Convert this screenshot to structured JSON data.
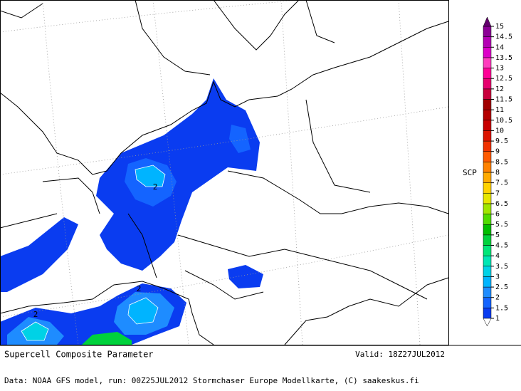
{
  "map": {
    "contour_labels": [
      2,
      2,
      2
    ]
  },
  "colorbar": {
    "label": "SCP",
    "levels": [
      1,
      1.5,
      2,
      2.5,
      3,
      3.5,
      4,
      4.5,
      5,
      5.5,
      6,
      6.5,
      7,
      7.5,
      8,
      8.5,
      9,
      9.5,
      10,
      10.5,
      11,
      11.5,
      12,
      12.5,
      13,
      13.5,
      14,
      14.5,
      15
    ],
    "colors": [
      "#0a3cf0",
      "#1464ff",
      "#1e8cff",
      "#00b4ff",
      "#00d2e6",
      "#00e6b4",
      "#00e678",
      "#00d23c",
      "#00be00",
      "#50dc00",
      "#a0e600",
      "#e6e600",
      "#ffd200",
      "#ffaa00",
      "#ff8200",
      "#ff5a00",
      "#f03200",
      "#dc1400",
      "#c80000",
      "#b40000",
      "#a00000",
      "#c8003c",
      "#e6006e",
      "#ff0096",
      "#ff3cbe",
      "#dc00c8",
      "#b400b4",
      "#8c0096"
    ],
    "under_color": "#ffffff",
    "over_color": "#64006e"
  },
  "footer": {
    "title": "Supercell Composite Parameter",
    "valid": "Valid: 18Z27JUL2012",
    "source": "Data: NOAA GFS model, run: 00Z25JUL2012  Stormchaser Europe Modellkarte, (C) saakeskus.fi"
  }
}
